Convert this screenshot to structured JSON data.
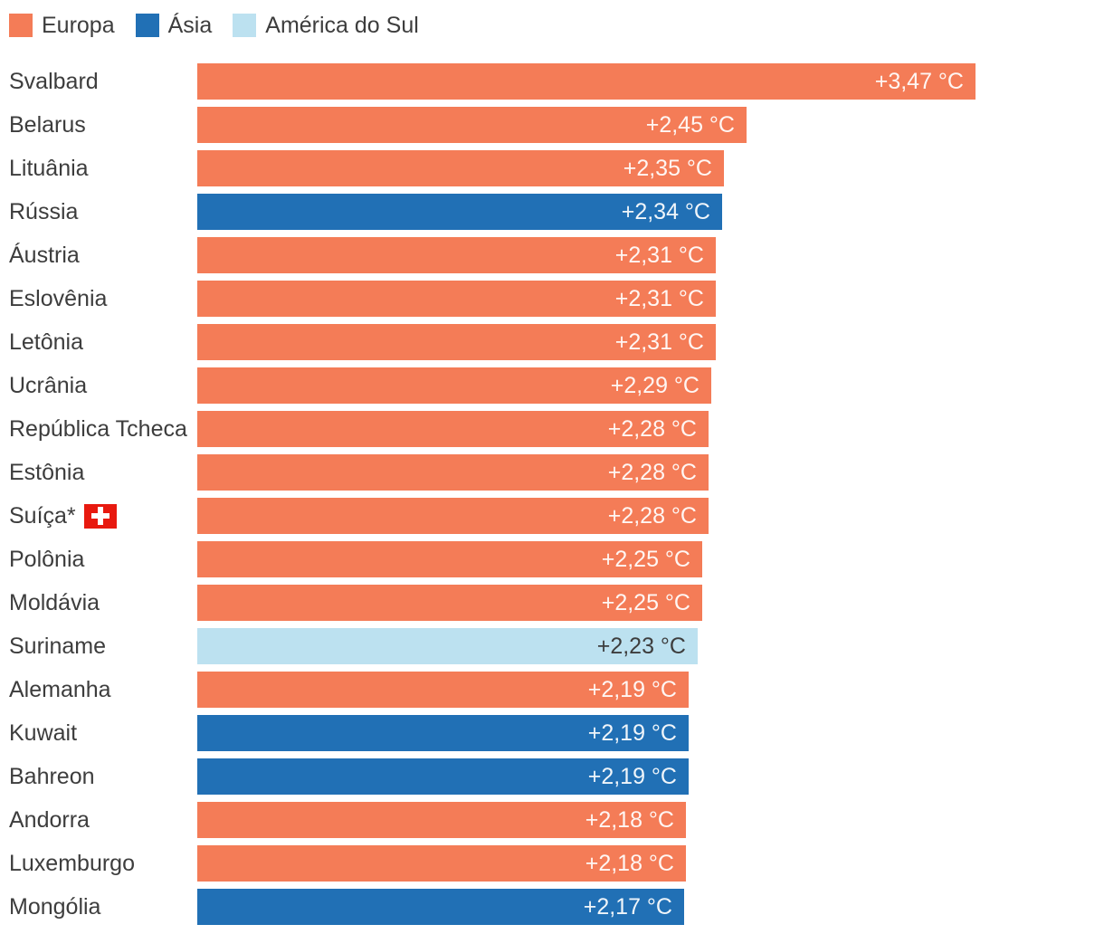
{
  "colors": {
    "label_text": "#3D3D3D",
    "flag_red": "#E8190F",
    "flag_cross": "#FFFFFF",
    "background": "#FFFFFF"
  },
  "regions": {
    "europa": {
      "color": "#F47C57",
      "value_text": "rgba(255,255,255,0.93)"
    },
    "asia": {
      "color": "#2170B5",
      "value_text": "rgba(255,255,255,0.93)"
    },
    "america_do_sul": {
      "color": "#BCE1F0",
      "value_text": "#3D3D3D"
    }
  },
  "legend": {
    "items": [
      {
        "label": "Europa",
        "region": "europa"
      },
      {
        "label": "Ásia",
        "region": "asia"
      },
      {
        "label": "América do Sul",
        "region": "america_do_sul"
      }
    ]
  },
  "chart_data": {
    "type": "bar",
    "orientation": "horizontal",
    "value_unit": "°C",
    "value_format": "comma_decimal_plus_prefix",
    "axis_max": 3.47,
    "legend_position": "top-left",
    "grid": false,
    "rows": [
      {
        "label": "Svalbard",
        "value": 3.47,
        "display": "+3,47 °C",
        "region": "europa"
      },
      {
        "label": "Belarus",
        "value": 2.45,
        "display": "+2,45 °C",
        "region": "europa"
      },
      {
        "label": "Lituânia",
        "value": 2.35,
        "display": "+2,35 °C",
        "region": "europa"
      },
      {
        "label": "Rússia",
        "value": 2.34,
        "display": "+2,34 °C",
        "region": "asia"
      },
      {
        "label": "Áustria",
        "value": 2.31,
        "display": "+2,31 °C",
        "region": "europa"
      },
      {
        "label": "Eslovênia",
        "value": 2.31,
        "display": "+2,31 °C",
        "region": "europa"
      },
      {
        "label": "Letônia",
        "value": 2.31,
        "display": "+2,31 °C",
        "region": "europa"
      },
      {
        "label": "Ucrânia",
        "value": 2.29,
        "display": "+2,29 °C",
        "region": "europa"
      },
      {
        "label": "República Tcheca",
        "value": 2.28,
        "display": "+2,28 °C",
        "region": "europa"
      },
      {
        "label": "Estônia",
        "value": 2.28,
        "display": "+2,28 °C",
        "region": "europa"
      },
      {
        "label": "Suíça*",
        "value": 2.28,
        "display": "+2,28 °C",
        "region": "europa",
        "flag": "swiss-flag"
      },
      {
        "label": "Polônia",
        "value": 2.25,
        "display": "+2,25 °C",
        "region": "europa"
      },
      {
        "label": "Moldávia",
        "value": 2.25,
        "display": "+2,25 °C",
        "region": "europa"
      },
      {
        "label": "Suriname",
        "value": 2.23,
        "display": "+2,23 °C",
        "region": "america_do_sul"
      },
      {
        "label": "Alemanha",
        "value": 2.19,
        "display": "+2,19 °C",
        "region": "europa"
      },
      {
        "label": "Kuwait",
        "value": 2.19,
        "display": "+2,19 °C",
        "region": "asia"
      },
      {
        "label": "Bahreon",
        "value": 2.19,
        "display": "+2,19 °C",
        "region": "asia"
      },
      {
        "label": "Andorra",
        "value": 2.18,
        "display": "+2,18 °C",
        "region": "europa"
      },
      {
        "label": "Luxemburgo",
        "value": 2.18,
        "display": "+2,18 °C",
        "region": "europa"
      },
      {
        "label": "Mongólia",
        "value": 2.17,
        "display": "+2,17 °C",
        "region": "asia"
      }
    ]
  }
}
